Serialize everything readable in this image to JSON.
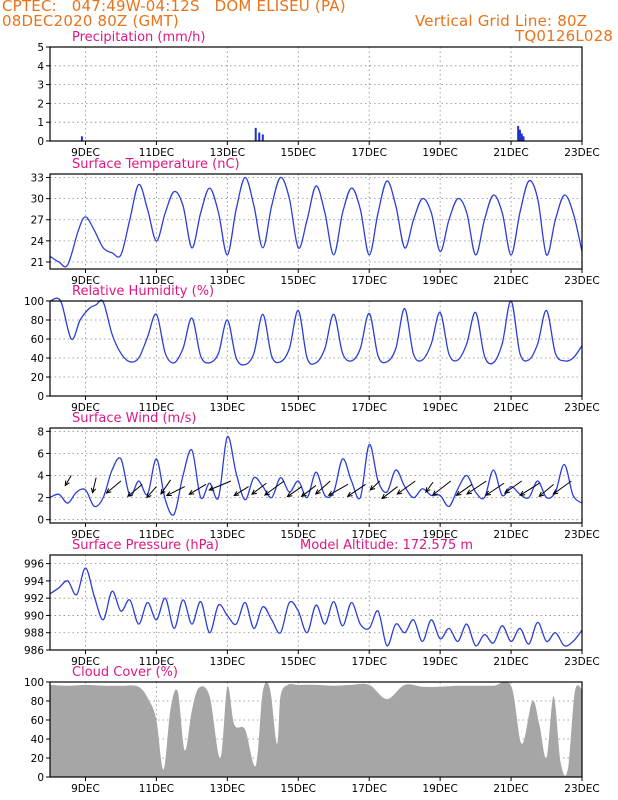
{
  "header": {
    "left_line1": "CPTEC:   047:49W-04:12S   DOM ELISEU (PA)",
    "left_line2": "08DEC2020 80Z (GMT)",
    "right_line1": "Vertical Grid Line: 80Z",
    "right_line2": "TQ0126L028"
  },
  "x_tick_labels": [
    "9DEC",
    "11DEC",
    "13DEC",
    "15DEC",
    "17DEC",
    "19DEC",
    "21DEC",
    "23DEC"
  ],
  "colors": {
    "line": "#2b3fd6",
    "bar": "#1f2fd0",
    "cloud": "#a6a6a6",
    "title": "#e0177f",
    "header": "#e8731a"
  },
  "chart_data": [
    {
      "id": "precipitation",
      "type": "bar",
      "title": "Precipitation (mm/h)",
      "x_unit": "days since 08DEC2020 08Z",
      "ylim": [
        0,
        5
      ],
      "yticks": [
        0,
        1,
        2,
        3,
        4,
        5
      ],
      "grid": true,
      "x": [
        0.9,
        5.8,
        5.9,
        6.0,
        13.2,
        13.25,
        13.3,
        13.35
      ],
      "values": [
        0.25,
        0.7,
        0.45,
        0.35,
        0.8,
        0.6,
        0.4,
        0.25
      ]
    },
    {
      "id": "temperature",
      "type": "line",
      "title": "Surface Temperature (nC)",
      "ylim": [
        20,
        33.5
      ],
      "yticks": [
        21,
        24,
        27,
        30,
        33
      ],
      "grid": true,
      "series": [
        {
          "x": [
            0,
            0.25,
            0.5,
            0.8,
            1.0,
            1.25,
            1.5,
            1.75,
            2.0,
            2.25,
            2.5,
            2.75,
            3.0,
            3.25,
            3.5,
            3.75,
            4.0,
            4.25,
            4.5,
            4.75,
            5.0,
            5.25,
            5.5,
            5.75,
            6.0,
            6.25,
            6.5,
            6.75,
            7.0,
            7.25,
            7.5,
            7.75,
            8.0,
            8.25,
            8.5,
            8.75,
            9.0,
            9.25,
            9.5,
            9.75,
            10.0,
            10.25,
            10.5,
            10.75,
            11.0,
            11.25,
            11.5,
            11.75,
            12.0,
            12.25,
            12.5,
            12.75,
            13.0,
            13.25,
            13.5,
            13.75,
            14.0,
            14.25,
            14.5,
            14.75,
            15.0
          ],
          "values": [
            21.8,
            21.0,
            20.6,
            25.5,
            27.4,
            25.5,
            23.0,
            22.3,
            22.0,
            27.0,
            32.0,
            28.5,
            24.0,
            28.0,
            31.0,
            29.0,
            23.0,
            28.0,
            31.5,
            28.0,
            22.0,
            28.5,
            33.0,
            29.0,
            23.0,
            29.0,
            33.0,
            30.0,
            23.0,
            27.0,
            31.8,
            28.0,
            22.0,
            28.0,
            31.5,
            28.5,
            22.0,
            28.0,
            32.5,
            29.0,
            23.0,
            27.0,
            30.0,
            28.0,
            22.5,
            27.0,
            30.0,
            28.0,
            22.0,
            27.0,
            30.5,
            28.0,
            22.0,
            28.0,
            32.5,
            30.0,
            22.0,
            27.0,
            30.5,
            28.0,
            22.5
          ]
        }
      ]
    },
    {
      "id": "humidity",
      "type": "line",
      "title": "Relative Humidity (%)",
      "ylim": [
        0,
        100
      ],
      "yticks": [
        0,
        20,
        40,
        60,
        80,
        100
      ],
      "grid": true,
      "series": [
        {
          "x": [
            0,
            0.3,
            0.6,
            0.85,
            1.1,
            1.3,
            1.5,
            1.75,
            2.0,
            2.25,
            2.5,
            2.75,
            3.0,
            3.25,
            3.5,
            3.75,
            4.0,
            4.25,
            4.5,
            4.75,
            5.0,
            5.25,
            5.5,
            5.75,
            6.0,
            6.25,
            6.5,
            6.75,
            7.0,
            7.25,
            7.5,
            7.75,
            8.0,
            8.25,
            8.5,
            8.75,
            9.0,
            9.25,
            9.5,
            9.75,
            10.0,
            10.25,
            10.5,
            10.75,
            11.0,
            11.25,
            11.5,
            11.75,
            12.0,
            12.25,
            12.5,
            12.75,
            13.0,
            13.25,
            13.5,
            13.75,
            14.0,
            14.25,
            14.5,
            14.75,
            15.0
          ],
          "values": [
            100,
            100,
            60,
            80,
            92,
            96,
            99,
            65,
            45,
            36,
            40,
            62,
            86,
            45,
            35,
            50,
            82,
            42,
            35,
            45,
            80,
            40,
            33,
            45,
            86,
            42,
            36,
            50,
            90,
            40,
            35,
            50,
            86,
            45,
            37,
            50,
            87,
            42,
            36,
            50,
            92,
            44,
            38,
            55,
            88,
            44,
            38,
            55,
            88,
            42,
            35,
            55,
            100,
            45,
            38,
            55,
            90,
            45,
            37,
            40,
            53
          ]
        }
      ]
    },
    {
      "id": "wind",
      "type": "line",
      "title": "Surface Wind (m/s)",
      "ylim": [
        -0.3,
        8.3
      ],
      "yticks": [
        0,
        2,
        4,
        6,
        8
      ],
      "grid": true,
      "series": [
        {
          "x": [
            0,
            0.25,
            0.5,
            0.75,
            1.0,
            1.25,
            1.5,
            1.75,
            2.0,
            2.25,
            2.5,
            2.75,
            3.0,
            3.25,
            3.5,
            3.75,
            4.0,
            4.25,
            4.5,
            4.75,
            5.0,
            5.25,
            5.5,
            5.75,
            6.0,
            6.25,
            6.5,
            6.75,
            7.0,
            7.25,
            7.5,
            7.75,
            8.0,
            8.25,
            8.5,
            8.75,
            9.0,
            9.25,
            9.5,
            9.75,
            10.0,
            10.25,
            10.5,
            10.75,
            11.0,
            11.25,
            11.5,
            11.75,
            12.0,
            12.25,
            12.5,
            12.75,
            13.0,
            13.25,
            13.5,
            13.75,
            14.0,
            14.25,
            14.5,
            14.75,
            15.0
          ],
          "values": [
            2.0,
            2.3,
            1.5,
            2.5,
            2.7,
            1.2,
            2.0,
            4.5,
            5.5,
            2.2,
            3.5,
            2.3,
            5.5,
            1.8,
            0.5,
            4.0,
            6.3,
            2.0,
            3.3,
            2.0,
            7.5,
            4.2,
            1.8,
            3.8,
            3.0,
            2.0,
            3.8,
            2.5,
            3.5,
            2.0,
            4.3,
            2.2,
            2.5,
            5.5,
            3.5,
            2.0,
            6.8,
            3.5,
            2.5,
            4.5,
            3.0,
            2.0,
            2.8,
            2.2,
            2.2,
            1.2,
            2.8,
            4.0,
            2.5,
            2.0,
            4.5,
            2.2,
            3.0,
            2.3,
            2.0,
            3.5,
            2.0,
            2.5,
            5.0,
            2.2,
            1.5
          ]
        }
      ],
      "arrows": [
        [
          0.6,
          4.0,
          0.5,
          -1.0
        ],
        [
          1.3,
          3.8,
          0.3,
          -1.5
        ],
        [
          2.0,
          3.5,
          1.2,
          -1.2
        ],
        [
          2.6,
          3.2,
          1.2,
          -1.2
        ],
        [
          3.0,
          3.0,
          0.8,
          -1.1
        ],
        [
          3.4,
          3.6,
          0.8,
          -1.4
        ],
        [
          3.8,
          3.0,
          1.5,
          -0.9
        ],
        [
          4.4,
          3.2,
          1.4,
          -1.0
        ],
        [
          5.1,
          3.5,
          1.8,
          -0.9
        ],
        [
          5.6,
          3.0,
          1.2,
          -0.9
        ],
        [
          6.1,
          3.3,
          1.2,
          -1.1
        ],
        [
          6.6,
          3.5,
          1.6,
          -1.4
        ],
        [
          7.1,
          3.0,
          1.2,
          -1.0
        ],
        [
          7.5,
          3.1,
          1.2,
          -1.1
        ],
        [
          7.9,
          3.5,
          1.2,
          -1.3
        ],
        [
          8.4,
          3.2,
          1.6,
          -1.1
        ],
        [
          8.9,
          3.2,
          1.5,
          -1.2
        ],
        [
          9.3,
          3.5,
          0.8,
          -0.9
        ],
        [
          9.8,
          3.0,
          1.3,
          -1.2
        ],
        [
          10.3,
          3.5,
          1.5,
          -1.3
        ],
        [
          10.8,
          3.4,
          0.6,
          -1.0
        ],
        [
          11.3,
          3.5,
          1.5,
          -1.4
        ],
        [
          11.9,
          3.2,
          1.3,
          -1.1
        ],
        [
          12.3,
          3.5,
          1.6,
          -1.3
        ],
        [
          12.8,
          3.3,
          1.5,
          -1.2
        ],
        [
          13.3,
          3.5,
          1.4,
          -1.2
        ],
        [
          13.8,
          3.3,
          1.6,
          -1.2
        ],
        [
          14.2,
          3.2,
          1.2,
          -1.2
        ],
        [
          14.7,
          3.5,
          1.5,
          -1.3
        ]
      ]
    },
    {
      "id": "pressure",
      "type": "line",
      "title": "Surface Pressure (hPa)",
      "annotation": "Model Altitude: 172.575 m",
      "ylim": [
        986,
        997
      ],
      "yticks": [
        986,
        988,
        990,
        992,
        994,
        996
      ],
      "grid": true,
      "series": [
        {
          "x": [
            0,
            0.25,
            0.5,
            0.75,
            1.0,
            1.25,
            1.5,
            1.75,
            2.0,
            2.25,
            2.5,
            2.75,
            3.0,
            3.25,
            3.5,
            3.75,
            4.0,
            4.25,
            4.5,
            4.75,
            5.0,
            5.25,
            5.5,
            5.75,
            6.0,
            6.25,
            6.5,
            6.75,
            7.0,
            7.25,
            7.5,
            7.75,
            8.0,
            8.25,
            8.5,
            8.75,
            9.0,
            9.25,
            9.5,
            9.75,
            10.0,
            10.25,
            10.5,
            10.75,
            11.0,
            11.25,
            11.5,
            11.75,
            12.0,
            12.25,
            12.5,
            12.75,
            13.0,
            13.25,
            13.5,
            13.75,
            14.0,
            14.25,
            14.5,
            14.75,
            15.0
          ],
          "values": [
            992.5,
            993.2,
            994.0,
            992.4,
            995.5,
            992.2,
            989.5,
            992.8,
            990.5,
            991.8,
            989.0,
            991.5,
            989.5,
            992.0,
            988.5,
            991.8,
            989.0,
            991.6,
            988.0,
            991.2,
            990.0,
            989.0,
            991.5,
            988.5,
            991.0,
            989.5,
            988.0,
            991.5,
            990.5,
            988.0,
            991.2,
            989.0,
            991.6,
            988.8,
            991.5,
            989.0,
            988.5,
            990.5,
            986.5,
            989.0,
            988.0,
            989.5,
            987.0,
            989.5,
            987.3,
            988.5,
            987.0,
            989.0,
            986.5,
            987.8,
            986.8,
            988.8,
            987.0,
            988.5,
            986.7,
            989.2,
            987.0,
            988.0,
            986.5,
            987.0,
            988.3
          ]
        }
      ]
    },
    {
      "id": "cloud",
      "type": "area",
      "title": "Cloud Cover (%)",
      "ylim": [
        0,
        100
      ],
      "yticks": [
        0,
        20,
        40,
        60,
        80,
        100
      ],
      "grid": true,
      "series": [
        {
          "x": [
            0,
            0.5,
            1.0,
            1.5,
            2.0,
            2.5,
            2.8,
            3.0,
            3.2,
            3.4,
            3.6,
            3.8,
            4.0,
            4.2,
            4.5,
            4.8,
            5.0,
            5.2,
            5.5,
            5.8,
            6.0,
            6.2,
            6.4,
            6.5,
            6.7,
            7.0,
            7.5,
            8.0,
            8.5,
            9.0,
            9.5,
            10.0,
            10.5,
            11.0,
            11.5,
            12.0,
            12.5,
            13.0,
            13.3,
            13.6,
            13.8,
            14.0,
            14.2,
            14.4,
            14.6,
            14.8,
            15.0
          ],
          "values": [
            97,
            96,
            97,
            96,
            96,
            95,
            80,
            60,
            8,
            72,
            90,
            28,
            70,
            94,
            85,
            20,
            95,
            55,
            50,
            12,
            90,
            93,
            35,
            85,
            97,
            97,
            97,
            96,
            97,
            97,
            82,
            97,
            95,
            95,
            96,
            96,
            96,
            96,
            35,
            80,
            55,
            20,
            85,
            15,
            8,
            90,
            92
          ]
        }
      ]
    }
  ]
}
